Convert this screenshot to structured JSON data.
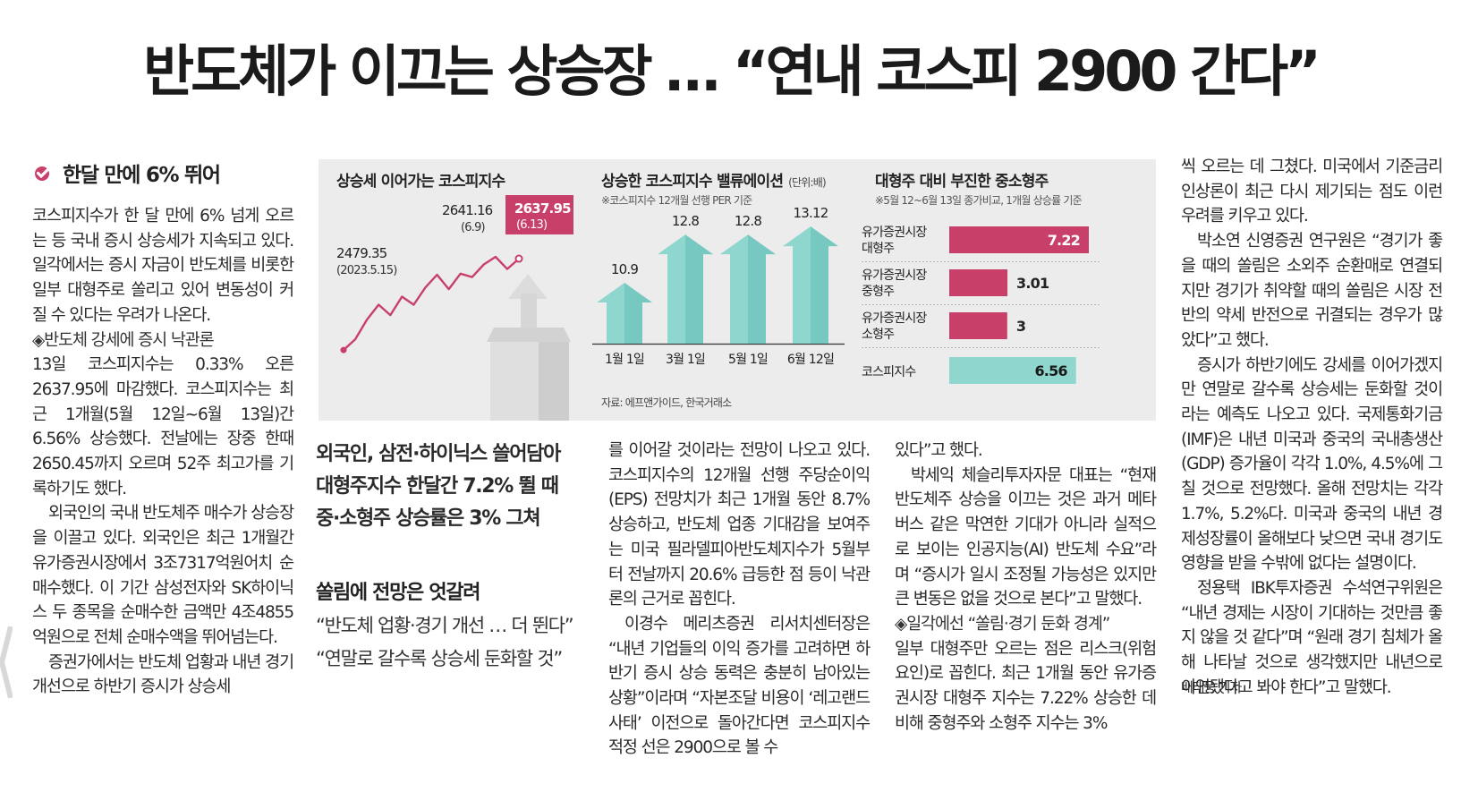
{
  "headline": "반도체가 이끄는 상승장 … “연내 코스피 2900 간다”",
  "colors": {
    "accent": "#c8406a",
    "teal": "#8fd6cf",
    "teal_dark": "#3aa79b",
    "graphic_bg": "#ececec"
  },
  "section": {
    "title": "한달 만에 6% 뛰어",
    "icon": "check-circle-icon"
  },
  "col1": {
    "p1": "코스피지수가 한 달 만에 6% 넘게 오르는 등 국내 증시 상승세가 지속되고 있다. 일각에서는 증시 자금이 반도체를 비롯한 일부 대형주로 쏠리고 있어 변동성이 커질 수 있다는 우려가 나온다.",
    "sub1": "◈반도체 강세에 증시 낙관론",
    "p2": "13일 코스피지수는 0.33% 오른 2637.95에 마감했다. 코스피지수는 최근 1개월(5월 12일~6월 13일)간 6.56% 상승했다. 전날에는 장중 한때 2650.45까지 오르며 52주 최고가를 기록하기도 했다.",
    "p3": "외국인의 국내 반도체주 매수가 상승장을 이끌고 있다. 외국인은 최근 1개월간 유가증권시장에서 3조7317억원어치 순매수했다. 이 기간 삼성전자와 SK하이닉스 두 종목을 순매수한 금액만 4조4855억원으로 전체 순매수액을 뛰어넘는다.",
    "p4": "증권가에서는 반도체 업황과 내년 경기 개선으로 하반기 증시가 상승세"
  },
  "decks": {
    "l1": "외국인, 삼전·하이닉스 쓸어담아",
    "l2": "대형주지수 한달간 7.2% 뛸 때",
    "l3": "중·소형주 상승률은 3% 그쳐"
  },
  "subhead": {
    "title": "쏠림에 전망은 엇갈려",
    "q1": "“반도체 업황·경기 개선 … 더 뛴다”",
    "q2": "“연말로 갈수록 상승세 둔화할 것”"
  },
  "col3": {
    "p1": "를 이어갈 것이라는 전망이 나오고 있다. 코스피지수의 12개월 선행 주당순이익(EPS) 전망치가 최근 1개월 동안 8.7% 상승하고, 반도체 업종 기대감을 보여주는 미국 필라델피아반도체지수가 5월부터 전날까지 20.6% 급등한 점 등이 낙관론의 근거로 꼽힌다.",
    "p2": "이경수 메리츠증권 리서치센터장은 “내년 기업들의 이익 증가를 고려하면 하반기 증시 상승 동력은 충분히 남아있는 상황”이라며 “자본조달 비용이 ‘레고랜드 사태’ 이전으로 돌아간다면 코스피지수 적정 선은 2900으로 볼 수"
  },
  "col4": {
    "p1": "있다”고 했다.",
    "p2": "박세익 체슬리투자자문 대표는 “현재 반도체주 상승을 이끄는 것은 과거 메타버스 같은 막연한 기대가 아니라 실적으로 보이는 인공지능(AI) 반도체 수요”라며 “증시가 일시 조정될 가능성은 있지만 큰 변동은 없을 것으로 본다”고 말했다.",
    "sub": "◈일각에선 “쏠림·경기 둔화 경계”",
    "p3": "일부 대형주만 오르는 점은 리스크(위험 요인)로 꼽힌다. 최근 1개월 동안 유가증권시장 대형주 지수는 7.22% 상승한 데 비해 중형주와 소형주 지수는 3%"
  },
  "col5": {
    "p1": "씩 오르는 데 그쳤다. 미국에서 기준금리 인상론이 최근 다시 제기되는 점도 이런 우려를 키우고 있다.",
    "p2": "박소연 신영증권 연구원은 “경기가 좋을 때의 쏠림은 소외주 순환매로 연결되지만 경기가 취약할 때의 쏠림은 시장 전반의 약세 반전으로 귀결되는 경우가 많았다”고 했다.",
    "p3": "증시가 하반기에도 강세를 이어가겠지만 연말로 갈수록 상승세는 둔화할 것이라는 예측도 나오고 있다. 국제통화기금(IMF)은 내년 미국과 중국의 국내총생산(GDP) 증가율이 각각 1.0%, 4.5%에 그칠 것으로 전망했다. 올해 전망치는 각각 1.7%, 5.2%다. 미국과 중국의 내년 경제성장률이 올해보다 낮으면 국내 경기도 영향을 받을 수밖에 없다는 설명이다.",
    "p4": "정용택 IBK투자증권 수석연구위원은 “내년 경제는 시장이 기대하는 것만큼 좋지 않을 것 같다”며 “원래 경기 침체가 올해 나타날 것으로 생각했지만 내년으로 이연됐다고 봐야 한다”고 말했다.",
    "byline": "배태웅 기자"
  },
  "graphic": {
    "source": "자료: 에프앤가이드, 한국거래소",
    "chart_data": [
      {
        "type": "line",
        "title": "상승세 이어가는 코스피지수",
        "annotations": [
          {
            "value": "2479.35",
            "note": "(2023.5.15)"
          },
          {
            "value": "2641.16",
            "note": "(6.9)"
          },
          {
            "value": "2637.95",
            "note": "(6.13)"
          }
        ],
        "values": [
          2479.35,
          2498,
          2532,
          2558,
          2540,
          2572,
          2558,
          2588,
          2610,
          2585,
          2612,
          2606,
          2628,
          2641.16,
          2620,
          2637.95
        ],
        "ylim": [
          2450,
          2680
        ]
      },
      {
        "type": "bar",
        "title": "상승한 코스피지수 밸류에이션",
        "unit": "(단위:배)",
        "note": "※코스피지수 12개월 선행 PER 기준",
        "categories": [
          "1월 1일",
          "3월 1일",
          "5월 1일",
          "6월 12일"
        ],
        "values": [
          10.9,
          12.8,
          12.8,
          13.12
        ],
        "value_labels": [
          "10.9",
          "12.8",
          "12.8",
          "13.12"
        ],
        "ylim": [
          8.5,
          13.3
        ]
      },
      {
        "type": "bar",
        "orientation": "horizontal",
        "title": "대형주 대비 부진한 중소형주",
        "note": "※5월 12~6월 13일 종가비교, 1개월 상승률 기준",
        "categories": [
          [
            "유가증권시장",
            "대형주"
          ],
          [
            "유가증권시장",
            "중형주"
          ],
          [
            "유가증권시장",
            "소형주"
          ],
          [
            "코스피지수"
          ]
        ],
        "values": [
          7.22,
          3.01,
          3,
          6.56
        ],
        "value_labels": [
          "7.22",
          "3.01",
          "3",
          "6.56"
        ],
        "xlim": [
          0,
          7.22
        ]
      }
    ]
  }
}
